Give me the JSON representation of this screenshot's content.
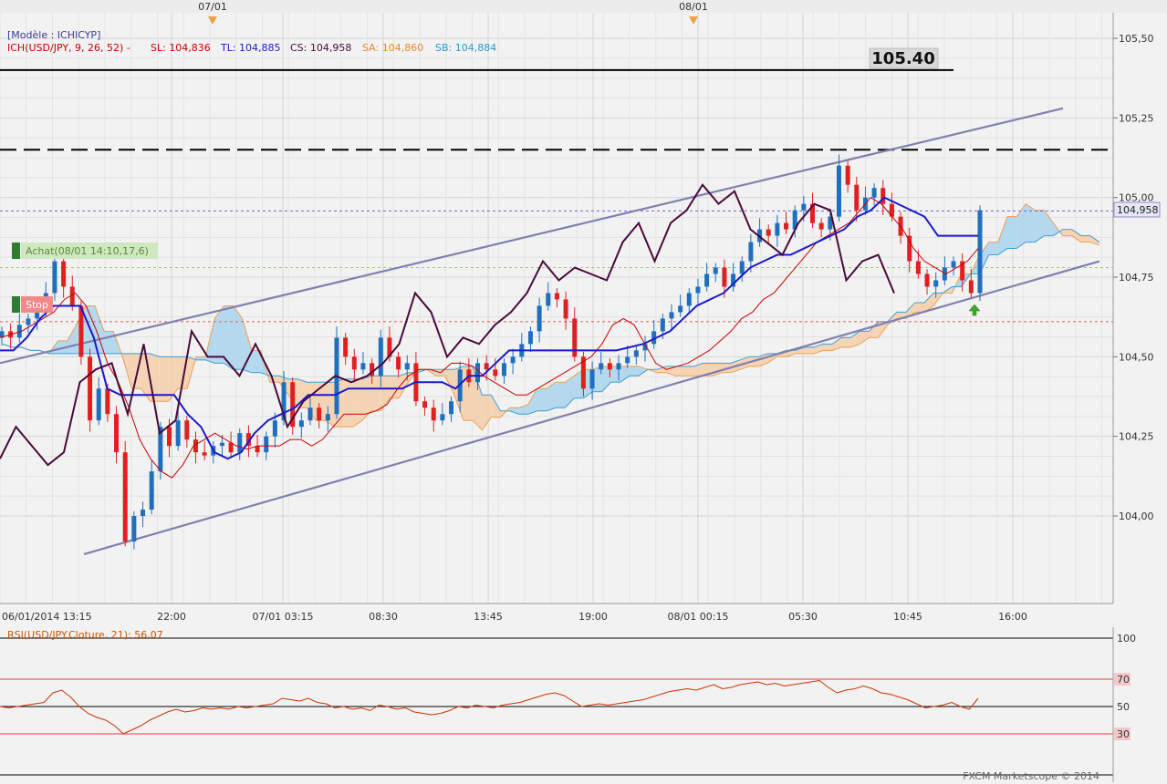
{
  "header": {
    "model_line": "[Modèle : ICHICYP]",
    "indicator_name": "ICH(USD/JPY, 9, 26, 52) -",
    "sl": "SL: 104,836",
    "tl": "TL: 104,885",
    "cs": "CS: 104,958",
    "sa": "SA: 104,860",
    "sb": "SB: 104,884"
  },
  "top_markers": [
    "07/01",
    "08/01"
  ],
  "level_label": "105.40",
  "price_label": "104,958",
  "order_labels": {
    "achat": "Achat(08/01 14:10,17,6)",
    "stop": "Stop"
  },
  "rsi_title": "RSI(USD/JPY.Cloture, 21): 56,07",
  "footer": "FXCM Marketscope © 2014",
  "colors": {
    "background": "#f2f2f2",
    "grid": "#d4d4d4",
    "up_candle": "#1f6fbf",
    "down_candle": "#e02020",
    "tenkan": "#cc0000",
    "kijun": "#1a1acc",
    "chikou": "#4a0a3a",
    "senkou_a": "#f0a050",
    "senkou_b": "#3aa0d8",
    "channel": "#8080b0",
    "rsi": "#cc3300"
  },
  "chart_data": [
    {
      "type": "candlestick",
      "instrument": "USD/JPY",
      "x_tick_labels": [
        "06/01/2014 13:15",
        "22:00",
        "07/01 03:15",
        "08:30",
        "13:45",
        "19:00",
        "08/01 00:15",
        "05:30",
        "10:45",
        "16:00"
      ],
      "y_tick_labels": [
        "105,50",
        "105,25",
        "105,00",
        "104,75",
        "104,50",
        "104,25",
        "104,00"
      ],
      "ylim": [
        103.8,
        105.62
      ],
      "close": [
        104.58,
        104.56,
        104.6,
        104.62,
        104.64,
        104.7,
        104.8,
        104.72,
        104.66,
        104.5,
        104.3,
        104.4,
        104.32,
        104.2,
        103.92,
        104.0,
        104.02,
        104.14,
        104.28,
        104.22,
        104.3,
        104.24,
        104.2,
        104.19,
        104.22,
        104.23,
        104.2,
        104.26,
        104.22,
        104.2,
        104.25,
        104.3,
        104.42,
        104.28,
        104.3,
        104.34,
        104.3,
        104.32,
        104.56,
        104.5,
        104.46,
        104.48,
        104.44,
        104.56,
        104.5,
        104.46,
        104.48,
        104.36,
        104.34,
        104.3,
        104.32,
        104.36,
        104.46,
        104.42,
        104.48,
        104.46,
        104.44,
        104.48,
        104.5,
        104.54,
        104.58,
        104.66,
        104.7,
        104.68,
        104.62,
        104.5,
        104.4,
        104.46,
        104.48,
        104.46,
        104.48,
        104.5,
        104.52,
        104.54,
        104.58,
        104.62,
        104.64,
        104.66,
        104.7,
        104.72,
        104.76,
        104.78,
        104.72,
        104.76,
        104.8,
        104.86,
        104.9,
        104.88,
        104.92,
        104.9,
        104.96,
        104.98,
        104.92,
        104.9,
        104.94,
        105.1,
        105.04,
        104.96,
        105.0,
        105.03,
        104.98,
        104.94,
        104.88,
        104.8,
        104.76,
        104.72,
        104.74,
        104.78,
        104.8,
        104.74,
        104.7,
        104.96
      ],
      "senkou_a": [
        104.54,
        104.53,
        104.52,
        104.51,
        104.55,
        104.6,
        104.66,
        104.58,
        104.5,
        104.4,
        104.36,
        104.36,
        104.4,
        104.5,
        104.62,
        104.66,
        104.62,
        104.52,
        104.42,
        104.38,
        104.34,
        104.3,
        104.28,
        104.28,
        104.3,
        104.33,
        104.37,
        104.42,
        104.46,
        104.44,
        104.38,
        104.3,
        104.27,
        104.31,
        104.34,
        104.35,
        104.4,
        104.42,
        104.44,
        104.46,
        104.47,
        104.47,
        104.47,
        104.46,
        104.45,
        104.44,
        104.44,
        104.44,
        104.45,
        104.46,
        104.47,
        104.48,
        104.5,
        104.51,
        104.51,
        104.52,
        104.53,
        104.54,
        104.56,
        104.6,
        104.62,
        104.64,
        104.66,
        104.7,
        104.76,
        104.82,
        104.86,
        104.94,
        104.98,
        104.96,
        104.92,
        104.88,
        104.86,
        104.85
      ],
      "senkou_b": [
        104.54,
        104.53,
        104.52,
        104.51,
        104.51,
        104.51,
        104.51,
        104.51,
        104.51,
        104.5,
        104.5,
        104.49,
        104.48,
        104.46,
        104.45,
        104.44,
        104.43,
        104.42,
        104.42,
        104.43,
        104.43,
        104.44,
        104.44,
        104.45,
        104.46,
        104.46,
        104.47,
        104.38,
        104.33,
        104.32,
        104.33,
        104.34,
        104.37,
        104.39,
        104.42,
        104.44,
        104.46,
        104.47,
        104.47,
        104.48,
        104.48,
        104.49,
        104.5,
        104.51,
        104.52,
        104.53,
        104.54,
        104.56,
        104.58,
        104.61,
        104.64,
        104.67,
        104.7,
        104.72,
        104.76,
        104.82,
        104.84,
        104.86,
        104.88,
        104.9,
        104.88,
        104.86
      ],
      "series": [
        {
          "name": "ICH SL",
          "values": [
            104.56,
            104.57,
            104.58,
            104.6,
            104.62,
            104.64,
            104.68,
            104.7,
            104.66,
            104.58,
            104.48,
            104.42,
            104.34,
            104.24,
            104.18,
            104.14,
            104.12,
            104.16,
            104.22,
            104.24,
            104.26,
            104.24,
            104.22,
            104.21,
            104.22,
            104.22,
            104.22,
            104.24,
            104.24,
            104.22,
            104.24,
            104.28,
            104.32,
            104.32,
            104.32,
            104.33,
            104.35,
            104.4,
            104.44,
            104.46,
            104.46,
            104.45,
            104.48,
            104.48,
            104.47,
            104.44,
            104.42,
            104.4,
            104.38,
            104.38,
            104.4,
            104.42,
            104.44,
            104.46,
            104.48,
            104.5,
            104.54,
            104.6,
            104.62,
            104.6,
            104.54,
            104.48,
            104.46,
            104.47,
            104.48,
            104.5,
            104.52,
            104.55,
            104.58,
            104.62,
            104.64,
            104.68,
            104.7,
            104.74,
            104.78,
            104.82,
            104.86,
            104.88,
            104.9,
            104.92,
            104.96,
            105.0,
            104.98,
            104.94,
            104.9,
            104.84,
            104.8,
            104.78,
            104.76,
            104.78,
            104.8,
            104.84
          ]
        },
        {
          "name": "ICH TL",
          "values": [
            104.52,
            104.52,
            104.56,
            104.62,
            104.66,
            104.66,
            104.66,
            104.56,
            104.4,
            104.38,
            104.38,
            104.38,
            104.38,
            104.38,
            104.32,
            104.28,
            104.2,
            104.18,
            104.2,
            104.26,
            104.3,
            104.32,
            104.34,
            104.38,
            104.38,
            104.38,
            104.4,
            104.4,
            104.4,
            104.4,
            104.4,
            104.42,
            104.42,
            104.42,
            104.4,
            104.44,
            104.44,
            104.48,
            104.52,
            104.52,
            104.52,
            104.52,
            104.52,
            104.52,
            104.52,
            104.52,
            104.52,
            104.53,
            104.54,
            104.56,
            104.58,
            104.62,
            104.66,
            104.68,
            104.7,
            104.74,
            104.78,
            104.8,
            104.82,
            104.82,
            104.84,
            104.86,
            104.88,
            104.9,
            104.94,
            104.96,
            105.0,
            104.98,
            104.96,
            104.94,
            104.88,
            104.88,
            104.88,
            104.88
          ]
        },
        {
          "name": "ICH CS",
          "values": [
            104.18,
            104.28,
            104.22,
            104.16,
            104.2,
            104.42,
            104.46,
            104.48,
            104.32,
            104.54,
            104.26,
            104.3,
            104.58,
            104.5,
            104.5,
            104.44,
            104.54,
            104.44,
            104.28,
            104.36,
            104.4,
            104.44,
            104.42,
            104.44,
            104.48,
            104.54,
            104.7,
            104.64,
            104.5,
            104.56,
            104.54,
            104.6,
            104.64,
            104.7,
            104.8,
            104.74,
            104.78,
            104.76,
            104.74,
            104.86,
            104.92,
            104.8,
            104.92,
            104.96,
            105.04,
            104.98,
            105.02,
            104.9,
            104.86,
            104.82,
            104.92,
            104.98,
            104.96,
            104.74,
            104.8,
            104.82,
            104.7
          ]
        },
        {
          "name": "Canal haut",
          "values": [
            104.48,
            105.28
          ]
        },
        {
          "name": "Canal bas",
          "values": [
            103.88,
            104.8
          ]
        }
      ],
      "levels": [
        105.4,
        105.15,
        104.958,
        104.78,
        104.61
      ],
      "annotations": [
        "105.40",
        "Achat(08/01 14:10,17,6)",
        "Stop",
        "104,958"
      ]
    },
    {
      "type": "line",
      "title": "RSI(USD/JPY.Cloture, 21): 56,07",
      "y_tick_labels": [
        "100",
        "70",
        "50",
        "30"
      ],
      "ylim": [
        0,
        100
      ],
      "levels": [
        100,
        70,
        50,
        30,
        0
      ],
      "series": [
        {
          "name": "RSI",
          "values": [
            50,
            49,
            50,
            51,
            52,
            53,
            60,
            62,
            57,
            50,
            45,
            42,
            40,
            36,
            30,
            33,
            36,
            40,
            43,
            46,
            48,
            46,
            47,
            49,
            48,
            49,
            48,
            50,
            49,
            50,
            51,
            52,
            56,
            55,
            54,
            56,
            53,
            52,
            49,
            50,
            48,
            49,
            47,
            51,
            50,
            48,
            49,
            46,
            45,
            44,
            45,
            47,
            50,
            49,
            51,
            50,
            49,
            51,
            52,
            53,
            55,
            57,
            59,
            60,
            58,
            54,
            50,
            51,
            52,
            51,
            52,
            53,
            54,
            55,
            57,
            59,
            61,
            62,
            63,
            62,
            64,
            66,
            63,
            64,
            66,
            67,
            68,
            66,
            67,
            65,
            66,
            67,
            68,
            69,
            64,
            60,
            62,
            63,
            65,
            63,
            60,
            59,
            57,
            55,
            52,
            49,
            50,
            51,
            53,
            50,
            48,
            56
          ]
        }
      ]
    }
  ]
}
